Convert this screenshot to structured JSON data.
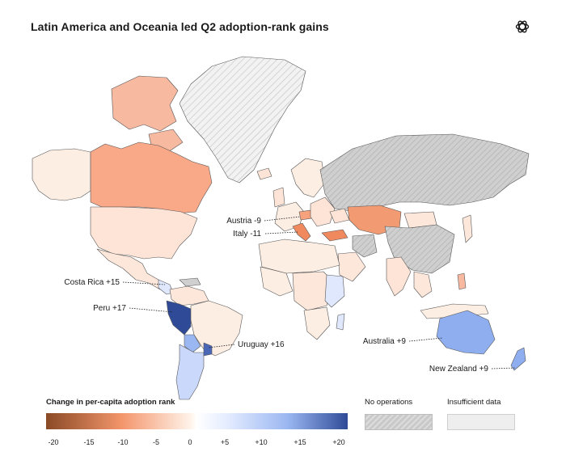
{
  "title": "Latin America and Oceania led Q2 adoption-rank gains",
  "logo_icon": "openai-logo-icon",
  "annotations": {
    "austria": "Austria -9",
    "italy": "Italy -11",
    "costa_rica": "Costa Rica +15",
    "peru": "Peru +17",
    "uruguay": "Uruguay +16",
    "australia": "Australia +9",
    "new_zealand": "New Zealand +9"
  },
  "legend": {
    "title": "Change in per-capita adoption rank",
    "ticks": [
      "-20",
      "-15",
      "-10",
      "-5",
      "0",
      "+5",
      "+10",
      "+15",
      "+20"
    ],
    "no_operations": "No operations",
    "insufficient_data": "Insufficient data"
  },
  "colors": {
    "strong_negative": "#8a4a26",
    "negative": "#f3956b",
    "mild_negative": "#fde3d5",
    "neutral": "#ffffff",
    "mild_positive": "#dfe8fd",
    "positive": "#9bb7f1",
    "strong_positive": "#2f4b98",
    "no_operations": "#c9c9c9",
    "insufficient": "#eeeeee"
  }
}
